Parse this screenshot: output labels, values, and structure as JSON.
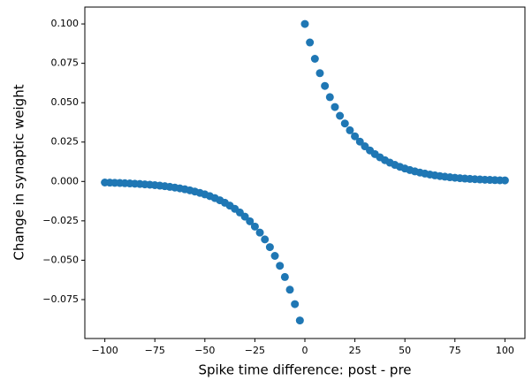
{
  "chart_data": {
    "type": "scatter",
    "xlabel": "Spike time difference: post - pre",
    "ylabel": "Change in synaptic weight",
    "x": [
      -100,
      -97.5,
      -95,
      -92.5,
      -90,
      -87.5,
      -85,
      -82.5,
      -80,
      -77.5,
      -75,
      -72.5,
      -70,
      -67.5,
      -65,
      -62.5,
      -60,
      -57.5,
      -55,
      -52.5,
      -50,
      -47.5,
      -45,
      -42.5,
      -40,
      -37.5,
      -35,
      -32.5,
      -30,
      -27.5,
      -25,
      -22.5,
      -20,
      -17.5,
      -15,
      -12.5,
      -10,
      -7.5,
      -5,
      -2.5,
      0,
      2.5,
      5,
      7.5,
      10,
      12.5,
      15,
      17.5,
      20,
      22.5,
      25,
      27.5,
      30,
      32.5,
      35,
      37.5,
      40,
      42.5,
      45,
      47.5,
      50,
      52.5,
      55,
      57.5,
      60,
      62.5,
      65,
      67.5,
      70,
      72.5,
      75,
      77.5,
      80,
      82.5,
      85,
      87.5,
      90,
      92.5,
      95,
      97.5,
      100
    ],
    "values": [
      -0.00067,
      -0.00076,
      -0.00086,
      -0.00098,
      -0.00111,
      -0.00126,
      -0.00143,
      -0.00161,
      -0.00183,
      -0.00207,
      -0.00235,
      -0.00266,
      -0.00302,
      -0.00342,
      -0.00388,
      -0.00439,
      -0.00498,
      -0.00564,
      -0.00639,
      -0.00724,
      -0.00821,
      -0.0093,
      -0.01054,
      -0.01194,
      -0.01353,
      -0.01534,
      -0.01738,
      -0.01969,
      -0.02231,
      -0.02528,
      -0.02865,
      -0.03247,
      -0.03679,
      -0.04169,
      -0.04724,
      -0.05353,
      -0.06065,
      -0.06873,
      -0.07788,
      -0.08825,
      0.1,
      0.08825,
      0.07788,
      0.06873,
      0.06065,
      0.05353,
      0.04724,
      0.04169,
      0.03679,
      0.03247,
      0.02865,
      0.02528,
      0.02231,
      0.01969,
      0.01738,
      0.01534,
      0.01353,
      0.01194,
      0.01054,
      0.0093,
      0.00821,
      0.00724,
      0.00639,
      0.00564,
      0.00498,
      0.00439,
      0.00388,
      0.00342,
      0.00302,
      0.00266,
      0.00235,
      0.00207,
      0.00183,
      0.00161,
      0.00143,
      0.00126,
      0.00111,
      0.00098,
      0.00086,
      0.00076,
      0.00067
    ],
    "color": "#1f77b4",
    "xlim": [
      -110,
      110
    ],
    "ylim": [
      -0.0997,
      0.1107
    ],
    "xticks": [
      {
        "value": -100,
        "label": "−100"
      },
      {
        "value": -75,
        "label": "−75"
      },
      {
        "value": -50,
        "label": "−50"
      },
      {
        "value": -25,
        "label": "−25"
      },
      0,
      25,
      50,
      75,
      100
    ],
    "yticks": [
      {
        "value": -0.075,
        "label": "−0.075"
      },
      {
        "value": -0.05,
        "label": "−0.050"
      },
      {
        "value": -0.025,
        "label": "−0.025"
      },
      {
        "value": 0,
        "label": "0.000"
      },
      {
        "value": 0.025,
        "label": "0.025"
      },
      {
        "value": 0.05,
        "label": "0.050"
      },
      {
        "value": 0.075,
        "label": "0.075"
      },
      {
        "value": 0.1,
        "label": "0.100"
      }
    ]
  }
}
